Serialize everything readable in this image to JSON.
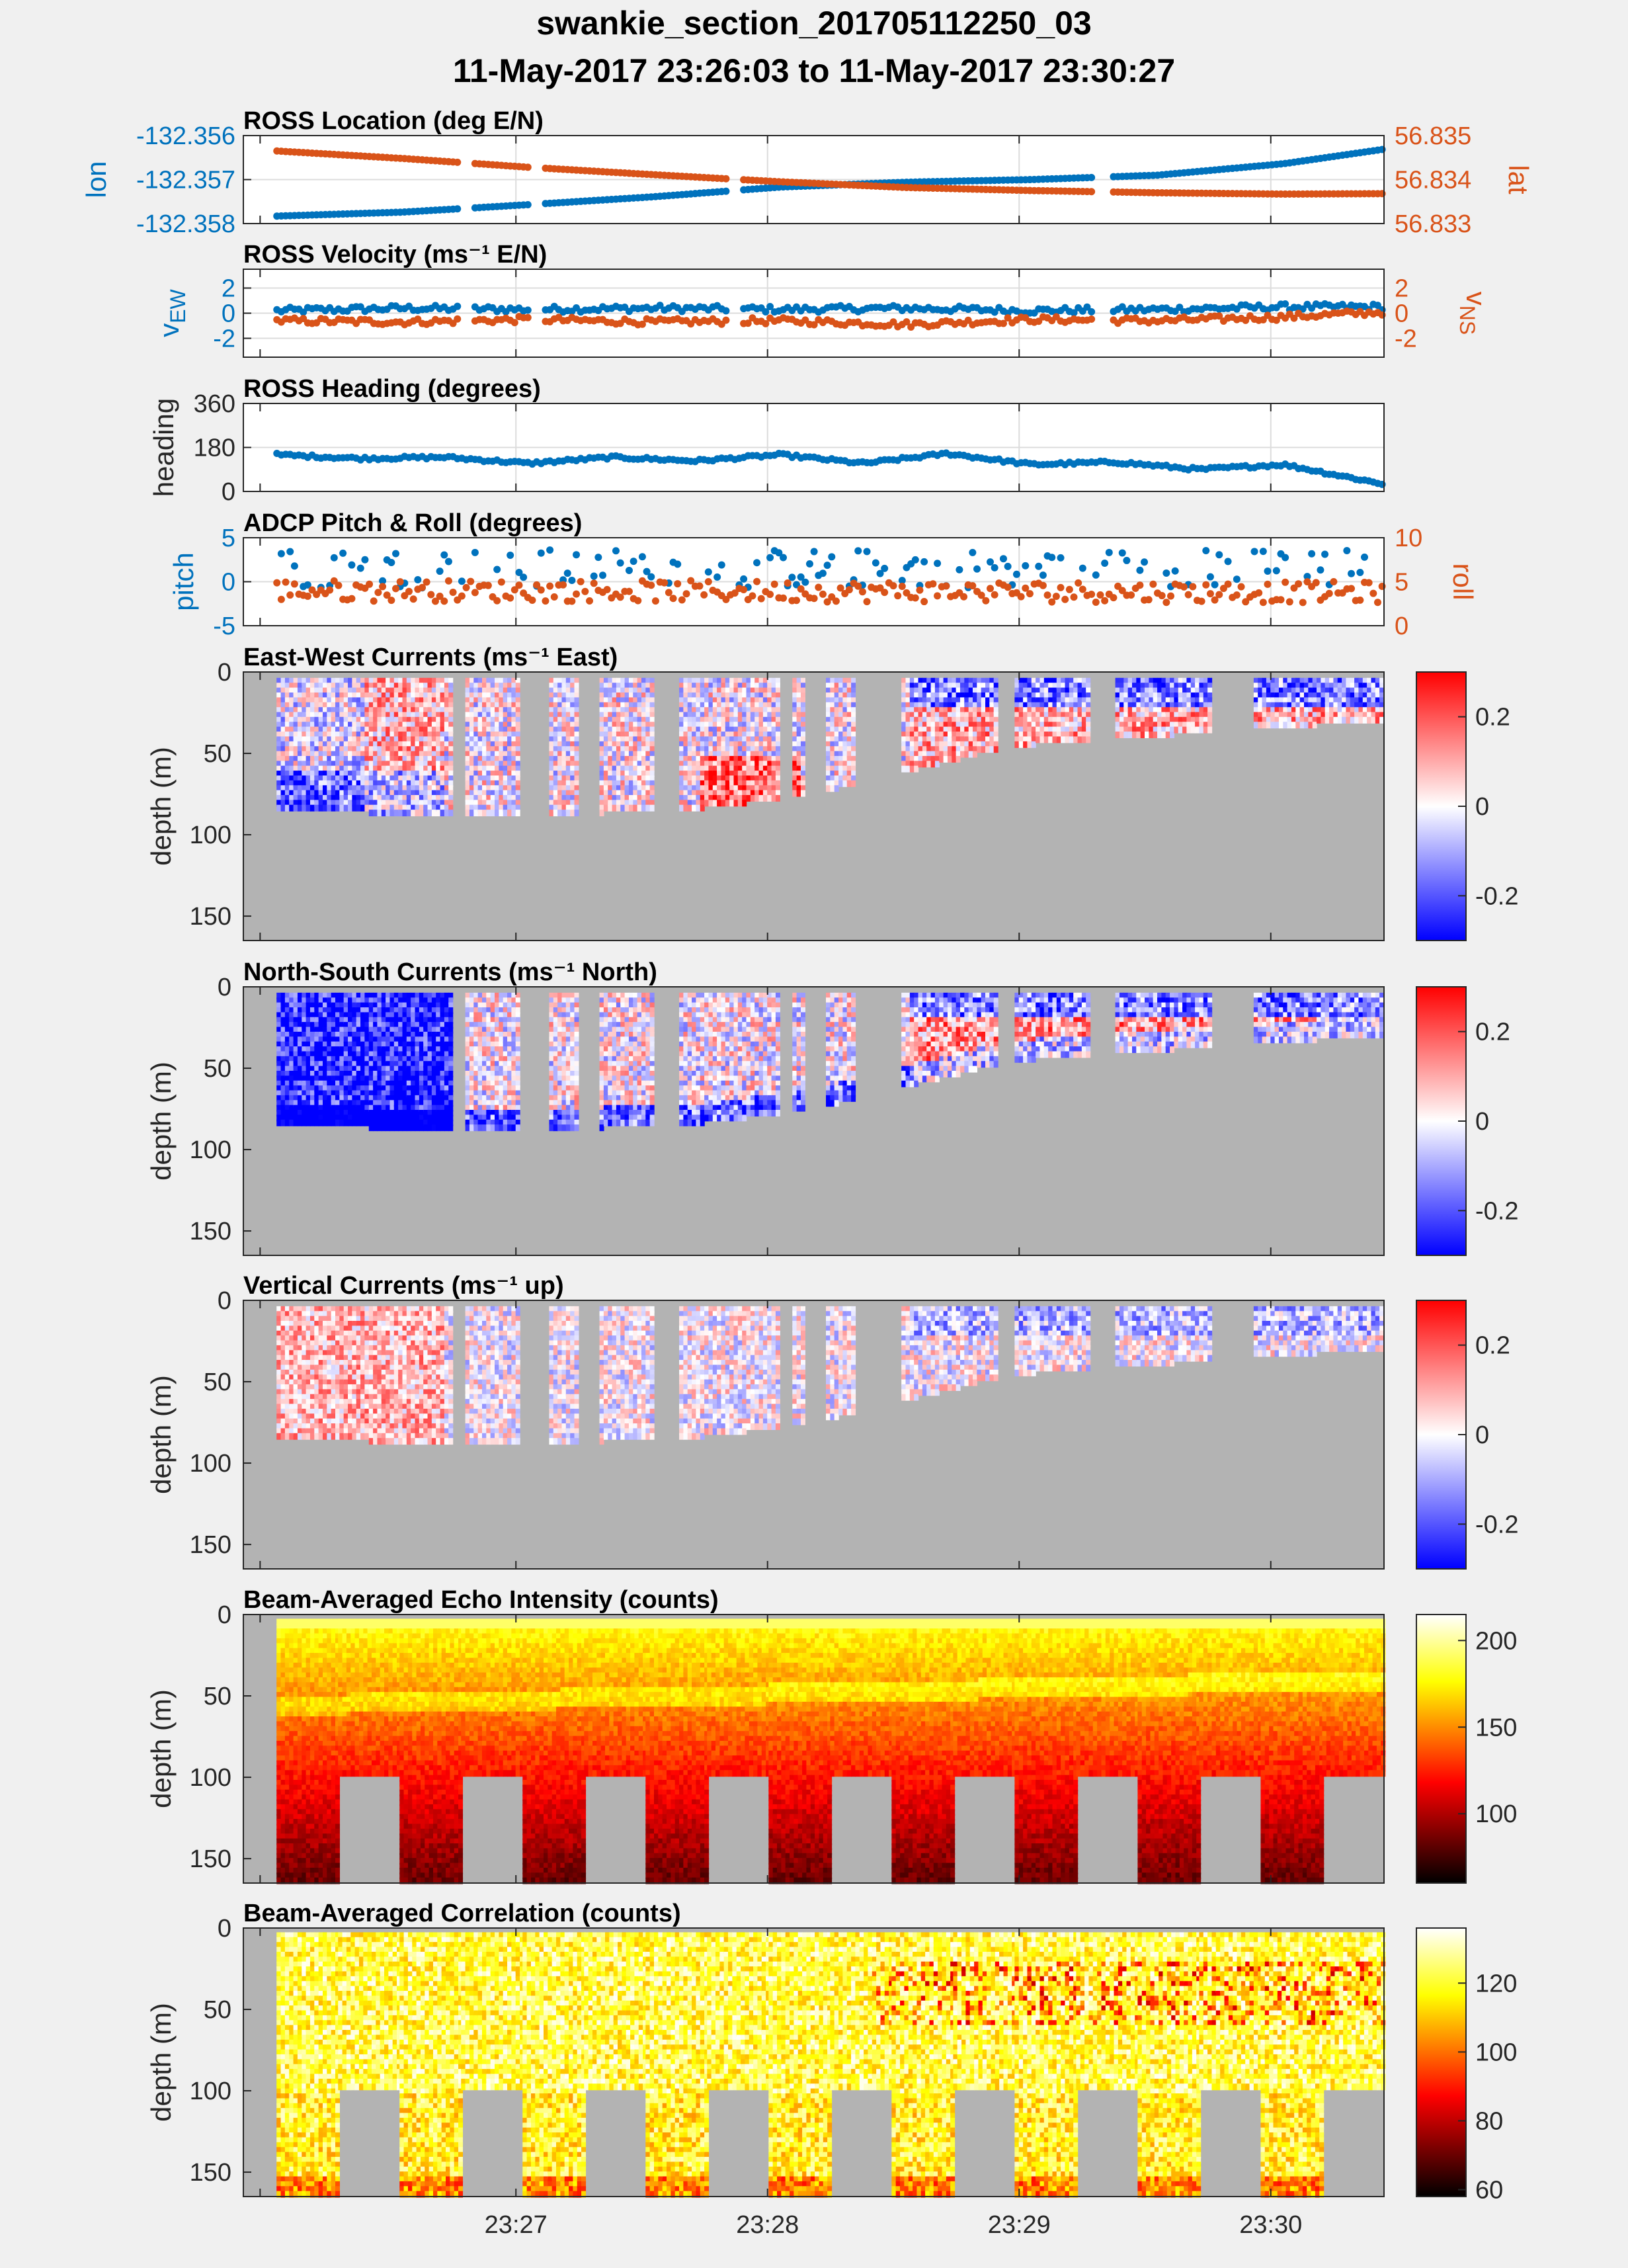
{
  "title_line1": "swankie_section_201705112250_03",
  "title_line2": "11-May-2017 23:26:03 to 11-May-2017 23:30:27",
  "colors": {
    "blue": "#0072bd",
    "orange": "#d95319",
    "mask_gray": "#b3b3b3",
    "figure_bg": "#f0f0f0",
    "grid": "#dcdcdc"
  },
  "chart_data": [
    {
      "type": "scatter",
      "title": "ROSS Location (deg E/N)",
      "grid": true,
      "left_axis": {
        "label": "lon",
        "ticks": [
          "-132.356",
          "-132.357",
          "-132.358"
        ],
        "range": [
          -132.358,
          -132.356
        ]
      },
      "right_axis": {
        "label": "lat",
        "ticks": [
          "56.835",
          "56.834",
          "56.833"
        ],
        "range": [
          56.833,
          56.835
        ]
      },
      "series": [
        {
          "axis": "left",
          "color": "#0072bd",
          "x": [
            0,
            30,
            60,
            90,
            120,
            150,
            180,
            210,
            240,
            264
          ],
          "values": [
            -132.35783,
            -132.35774,
            -132.35757,
            -132.35739,
            -132.35717,
            -132.35706,
            -132.357,
            -132.3569,
            -132.35664,
            -132.35631
          ]
        },
        {
          "axis": "right",
          "color": "#d95319",
          "x": [
            0,
            30,
            60,
            90,
            120,
            150,
            180,
            210,
            240,
            264
          ],
          "values": [
            56.83465,
            56.83448,
            56.83428,
            56.83411,
            56.83395,
            56.83382,
            56.83375,
            56.8337,
            56.83367,
            56.83368
          ]
        }
      ]
    },
    {
      "type": "scatter",
      "title": "ROSS Velocity (ms-1 E/N)",
      "grid": true,
      "left_axis": {
        "label": "vEW",
        "ticks": [
          "2",
          "0",
          "-2"
        ],
        "range": [
          -3.5,
          3.5
        ]
      },
      "right_axis": {
        "label": "vNS",
        "ticks": [
          "2",
          "0",
          "-2"
        ],
        "range": [
          -3.5,
          3.5
        ]
      },
      "series": [
        {
          "axis": "left",
          "color": "#0072bd",
          "x": [
            0,
            30,
            60,
            90,
            120,
            150,
            180,
            210,
            240,
            264
          ],
          "values": [
            0.2,
            0.4,
            0.3,
            0.4,
            0.3,
            0.4,
            0.2,
            0.3,
            0.5,
            0.5
          ]
        },
        {
          "axis": "right",
          "color": "#d95319",
          "x": [
            0,
            30,
            60,
            90,
            120,
            150,
            180,
            210,
            240,
            264
          ],
          "values": [
            -0.6,
            -0.7,
            -0.5,
            -0.7,
            -0.6,
            -0.9,
            -0.5,
            -0.6,
            -0.3,
            0.1
          ]
        }
      ]
    },
    {
      "type": "scatter",
      "title": "ROSS Heading (degrees)",
      "grid": true,
      "left_axis": {
        "label": "heading",
        "ticks": [
          "360",
          "180",
          "0"
        ],
        "range": [
          0,
          360
        ]
      },
      "series": [
        {
          "axis": "left",
          "color": "#0072bd",
          "x": [
            0,
            20,
            40,
            60,
            80,
            100,
            120,
            140,
            160,
            180,
            200,
            220,
            240,
            264
          ],
          "values": [
            150,
            135,
            140,
            115,
            140,
            125,
            150,
            115,
            155,
            110,
            120,
            90,
            110,
            30
          ]
        }
      ]
    },
    {
      "type": "scatter",
      "title": "ADCP Pitch & Roll (degrees)",
      "grid": true,
      "left_axis": {
        "label": "pitch",
        "ticks": [
          "5",
          "0",
          "-5"
        ],
        "range": [
          -5,
          5
        ]
      },
      "right_axis": {
        "label": "roll",
        "ticks": [
          "10",
          "5",
          "0"
        ],
        "range": [
          0,
          10
        ]
      },
      "series": [
        {
          "axis": "left",
          "color": "#0072bd",
          "x": [
            0,
            264
          ],
          "values": [
            1.5,
            1.5
          ],
          "spread": 2.2
        },
        {
          "axis": "right",
          "color": "#d95319",
          "x": [
            0,
            264
          ],
          "values": [
            4.0,
            3.8
          ],
          "spread": 1.2
        }
      ]
    },
    {
      "type": "heatmap",
      "title": "East-West Currents (ms-1 East)",
      "ylabel": "depth (m)",
      "ylim": [
        0,
        165
      ],
      "yticks": [
        "0",
        "50",
        "100",
        "150"
      ],
      "colormap": "blue-white-red",
      "clim": [
        -0.3,
        0.3
      ],
      "colorbar_ticks": [
        "0.2",
        "0",
        "-0.2"
      ],
      "bottom_depth": {
        "x": [
          0,
          42,
          95,
          125,
          175,
          264
        ],
        "depth": [
          83,
          87,
          84,
          75,
          44,
          28
        ]
      },
      "valid_segments": [
        [
          0,
          42
        ],
        [
          45,
          58
        ],
        [
          65,
          72
        ],
        [
          77,
          90
        ],
        [
          96,
          120
        ],
        [
          123,
          126
        ],
        [
          131,
          138
        ],
        [
          149,
          172
        ],
        [
          176,
          194
        ],
        [
          200,
          223
        ],
        [
          233,
          264
        ]
      ]
    },
    {
      "type": "heatmap",
      "title": "North-South Currents (ms-1 North)",
      "ylabel": "depth (m)",
      "ylim": [
        0,
        165
      ],
      "yticks": [
        "0",
        "50",
        "100",
        "150"
      ],
      "colormap": "blue-white-red",
      "clim": [
        -0.3,
        0.3
      ],
      "colorbar_ticks": [
        "0.2",
        "0",
        "-0.2"
      ],
      "bottom_depth": {
        "x": [
          0,
          42,
          95,
          125,
          175,
          264
        ],
        "depth": [
          83,
          87,
          84,
          75,
          44,
          28
        ]
      },
      "valid_segments": [
        [
          0,
          42
        ],
        [
          45,
          58
        ],
        [
          65,
          72
        ],
        [
          77,
          90
        ],
        [
          96,
          120
        ],
        [
          123,
          126
        ],
        [
          131,
          138
        ],
        [
          149,
          172
        ],
        [
          176,
          194
        ],
        [
          200,
          223
        ],
        [
          233,
          264
        ]
      ]
    },
    {
      "type": "heatmap",
      "title": "Vertical Currents (ms-1 up)",
      "ylabel": "depth (m)",
      "ylim": [
        0,
        165
      ],
      "yticks": [
        "0",
        "50",
        "100",
        "150"
      ],
      "colormap": "blue-white-red",
      "clim": [
        -0.3,
        0.3
      ],
      "colorbar_ticks": [
        "0.2",
        "0",
        "-0.2"
      ],
      "bottom_depth": {
        "x": [
          0,
          42,
          95,
          125,
          175,
          264
        ],
        "depth": [
          83,
          87,
          84,
          75,
          44,
          28
        ]
      },
      "valid_segments": [
        [
          0,
          42
        ],
        [
          45,
          58
        ],
        [
          65,
          72
        ],
        [
          77,
          90
        ],
        [
          96,
          120
        ],
        [
          123,
          126
        ],
        [
          131,
          138
        ],
        [
          149,
          172
        ],
        [
          176,
          194
        ],
        [
          200,
          223
        ],
        [
          233,
          264
        ]
      ]
    },
    {
      "type": "heatmap",
      "title": "Beam-Averaged Echo Intensity (counts)",
      "ylabel": "depth (m)",
      "ylim": [
        0,
        165
      ],
      "yticks": [
        "0",
        "50",
        "100",
        "150"
      ],
      "colormap": "hot",
      "clim": [
        60,
        215
      ],
      "colorbar_ticks": [
        "200",
        "150",
        "100"
      ],
      "blocks": 18,
      "range_cutoff_depth": 97
    },
    {
      "type": "heatmap",
      "title": "Beam-Averaged Correlation (counts)",
      "ylabel": "depth (m)",
      "ylim": [
        0,
        165
      ],
      "yticks": [
        "0",
        "50",
        "100",
        "150"
      ],
      "colormap": "hot",
      "clim": [
        58,
        136
      ],
      "colorbar_ticks": [
        "120",
        "100",
        "80",
        "60"
      ],
      "blocks": 18,
      "range_cutoff_depth": 97,
      "xlabel_ticks": [
        {
          "t": 57,
          "label": "23:27"
        },
        {
          "t": 117,
          "label": "23:28"
        },
        {
          "t": 177,
          "label": "23:29"
        },
        {
          "t": 237,
          "label": "23:30"
        }
      ]
    }
  ]
}
